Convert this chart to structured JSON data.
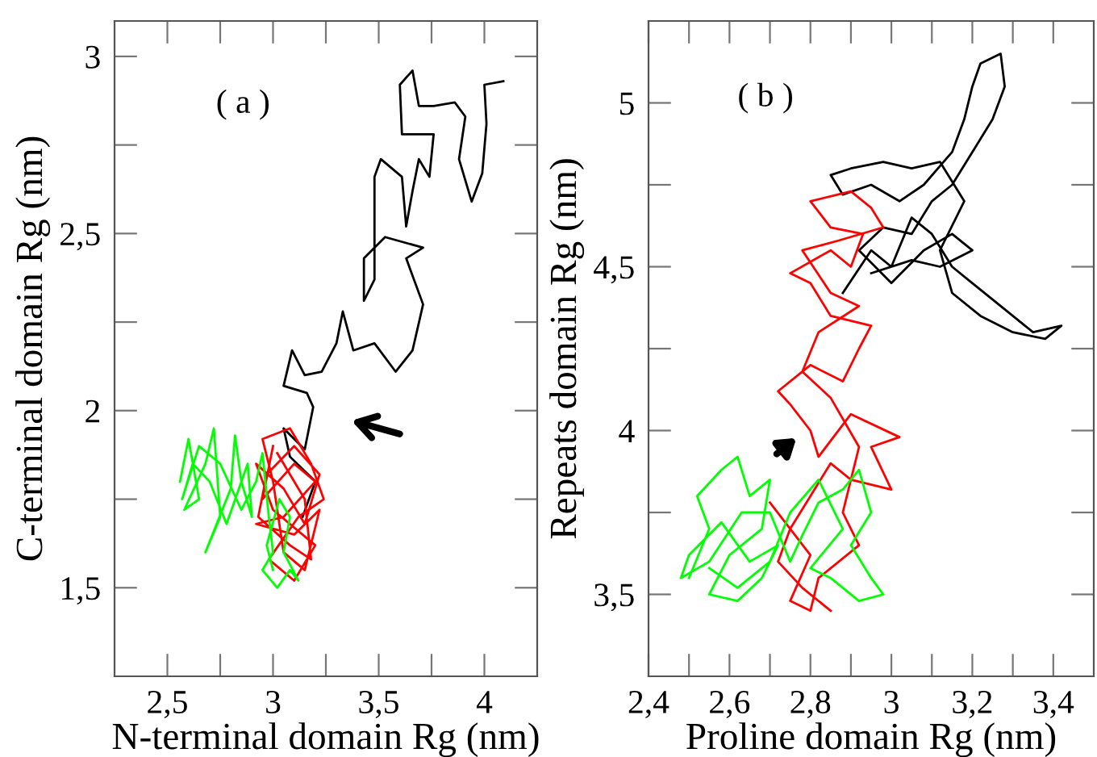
{
  "chart_data": [
    {
      "type": "line",
      "xlabel": "N-terminal domain Rg (nm)",
      "ylabel": "C-terminal domain Rg (nm)",
      "annotations": [
        "( a )"
      ],
      "xlim": [
        2.25,
        4.25
      ],
      "ylim": [
        1.25,
        3.1
      ],
      "xticks": [
        {
          "value": 2.5,
          "label": "2,5"
        },
        {
          "value": 2.75,
          "label": null
        },
        3,
        {
          "value": 3.25,
          "label": null
        },
        {
          "value": 3.5,
          "label": "3,5"
        },
        {
          "value": 3.75,
          "label": null
        },
        4
      ],
      "yticks": [
        {
          "value": 1.5,
          "label": "1,5"
        },
        {
          "value": 1.75,
          "label": null
        },
        2,
        {
          "value": 2.25,
          "label": null
        },
        {
          "value": 2.5,
          "label": "2,5"
        },
        {
          "value": 2.75,
          "label": null
        },
        3
      ],
      "grid": false,
      "legend": false,
      "marker": "none",
      "line_style": "solid",
      "series": [
        {
          "color": "#000000",
          "x": [
            3.14,
            3.2,
            3.08,
            3.05,
            3.15,
            3.19,
            3.16,
            3.05,
            3.09,
            3.15,
            3.23,
            3.3,
            3.33,
            3.38,
            3.48,
            3.58,
            3.66,
            3.71,
            3.63,
            3.71,
            3.53,
            3.43,
            3.43,
            3.48,
            3.48,
            3.48,
            3.51,
            3.61,
            3.63,
            3.66,
            3.69,
            3.74,
            3.76,
            3.61,
            3.6,
            3.66,
            3.69,
            3.76,
            3.86,
            3.91,
            3.88,
            3.94,
            3.99,
            4.01,
            4.0,
            4.09
          ],
          "values": [
            1.7,
            1.8,
            1.87,
            1.95,
            1.89,
            2.01,
            2.05,
            2.07,
            2.17,
            2.1,
            2.11,
            2.19,
            2.28,
            2.17,
            2.19,
            2.11,
            2.17,
            2.3,
            2.43,
            2.46,
            2.49,
            2.43,
            2.31,
            2.37,
            2.52,
            2.66,
            2.71,
            2.66,
            2.52,
            2.62,
            2.71,
            2.66,
            2.78,
            2.78,
            2.92,
            2.96,
            2.86,
            2.86,
            2.87,
            2.83,
            2.71,
            2.59,
            2.67,
            2.81,
            2.92,
            2.93
          ]
        },
        {
          "color": "#ff0000",
          "x": [
            3.0,
            2.95,
            3.1,
            3.2,
            3.05,
            2.92,
            3.1,
            3.22,
            3.15,
            3.05,
            3.0,
            2.95,
            3.08,
            3.18,
            3.24,
            3.12,
            2.98,
            3.1,
            3.2,
            3.0,
            2.92,
            3.05,
            3.15,
            3.22,
            3.1,
            2.97,
            2.93,
            3.08,
            3.18,
            3.15,
            3.02
          ],
          "values": [
            1.9,
            1.75,
            1.85,
            1.8,
            1.7,
            1.68,
            1.65,
            1.72,
            1.55,
            1.6,
            1.8,
            1.92,
            1.95,
            1.85,
            1.75,
            1.7,
            1.58,
            1.52,
            1.62,
            1.72,
            1.85,
            1.78,
            1.68,
            1.82,
            1.9,
            1.82,
            1.7,
            1.62,
            1.58,
            1.75,
            1.88
          ]
        },
        {
          "color": "#00ff00",
          "x": [
            2.56,
            2.6,
            2.65,
            2.58,
            2.68,
            2.72,
            2.75,
            2.68,
            2.8,
            2.82,
            2.85,
            2.9,
            2.88,
            2.78,
            2.7,
            2.62,
            2.57,
            2.65,
            2.75,
            2.85,
            2.92,
            2.95,
            2.98,
            3.0,
            2.95,
            3.02,
            3.08,
            3.12,
            3.05,
            3.08,
            3.03,
            2.97,
            3.0
          ],
          "values": [
            1.8,
            1.92,
            1.75,
            1.72,
            1.85,
            1.95,
            1.7,
            1.6,
            1.78,
            1.93,
            1.8,
            1.7,
            1.85,
            1.68,
            1.8,
            1.85,
            1.75,
            1.9,
            1.85,
            1.72,
            1.8,
            1.88,
            1.7,
            1.6,
            1.55,
            1.5,
            1.55,
            1.52,
            1.6,
            1.7,
            1.75,
            1.62,
            1.55
          ]
        }
      ]
    },
    {
      "type": "line",
      "xlabel": "Proline domain Rg (nm)",
      "ylabel": "Repeats domain Rg (nm)",
      "annotations": [
        "( b )"
      ],
      "xlim": [
        2.4,
        3.5
      ],
      "ylim": [
        3.25,
        5.25
      ],
      "xticks": [
        {
          "value": 2.4,
          "label": "2,4"
        },
        {
          "value": 2.5,
          "label": null
        },
        {
          "value": 2.6,
          "label": "2,6"
        },
        {
          "value": 2.7,
          "label": null
        },
        {
          "value": 2.8,
          "label": "2,8"
        },
        {
          "value": 2.9,
          "label": null
        },
        3,
        {
          "value": 3.1,
          "label": null
        },
        {
          "value": 3.2,
          "label": "3,2"
        },
        {
          "value": 3.3,
          "label": null
        },
        {
          "value": 3.4,
          "label": "3,4"
        }
      ],
      "yticks": [
        {
          "value": 3.5,
          "label": "3,5"
        },
        {
          "value": 3.75,
          "label": null
        },
        4,
        {
          "value": 4.25,
          "label": null
        },
        {
          "value": 4.5,
          "label": "4,5"
        },
        {
          "value": 4.75,
          "label": null
        },
        5
      ],
      "grid": false,
      "legend": false,
      "marker": "none",
      "line_style": "solid",
      "series": [
        {
          "color": "#000000",
          "x": [
            2.88,
            2.95,
            3.0,
            3.05,
            3.1,
            3.15,
            3.2,
            3.25,
            3.3,
            3.35,
            3.42,
            3.38,
            3.3,
            3.22,
            3.15,
            3.12,
            3.18,
            3.12,
            3.05,
            2.98,
            2.9,
            2.85,
            2.88,
            2.95,
            3.02,
            3.08,
            3.15,
            3.18,
            3.2,
            3.22,
            3.27,
            3.28,
            3.25,
            3.2,
            3.15,
            3.1,
            3.05,
            2.98,
            2.92,
            3.0,
            3.08,
            3.15,
            3.2,
            3.12,
            3.05,
            2.95
          ],
          "values": [
            4.42,
            4.55,
            4.5,
            4.65,
            4.6,
            4.5,
            4.45,
            4.4,
            4.35,
            4.3,
            4.32,
            4.28,
            4.3,
            4.35,
            4.42,
            4.55,
            4.7,
            4.82,
            4.8,
            4.82,
            4.8,
            4.78,
            4.72,
            4.75,
            4.7,
            4.75,
            4.85,
            4.95,
            5.05,
            5.12,
            5.15,
            5.05,
            4.95,
            4.85,
            4.75,
            4.7,
            4.6,
            4.62,
            4.55,
            4.45,
            4.55,
            4.6,
            4.55,
            4.5,
            4.52,
            4.48
          ]
        },
        {
          "color": "#ff0000",
          "x": [
            2.85,
            2.78,
            2.72,
            2.75,
            2.8,
            2.85,
            2.9,
            3.0,
            2.95,
            3.02,
            2.9,
            2.82,
            2.8,
            2.75,
            2.72,
            2.8,
            2.88,
            2.92,
            2.95,
            2.85,
            2.8,
            2.75,
            2.85,
            2.9,
            2.93,
            2.85,
            2.8,
            2.9,
            2.95,
            2.98,
            2.87,
            2.78,
            2.85,
            2.92,
            2.82,
            2.78,
            2.85,
            2.92,
            2.88,
            2.92,
            2.82,
            2.8,
            2.75,
            2.8,
            2.7
          ],
          "values": [
            3.45,
            3.52,
            3.6,
            3.7,
            3.8,
            3.9,
            3.85,
            3.82,
            3.95,
            3.98,
            4.05,
            3.92,
            4.0,
            4.08,
            4.12,
            4.2,
            4.15,
            4.25,
            4.32,
            4.35,
            4.45,
            4.48,
            4.55,
            4.5,
            4.6,
            4.62,
            4.7,
            4.73,
            4.68,
            4.62,
            4.58,
            4.55,
            4.42,
            4.38,
            4.3,
            4.18,
            4.1,
            3.95,
            3.75,
            3.65,
            3.55,
            3.45,
            3.48,
            3.62,
            3.78
          ]
        },
        {
          "color": "#00ff00",
          "x": [
            2.5,
            2.55,
            2.52,
            2.58,
            2.62,
            2.65,
            2.7,
            2.68,
            2.6,
            2.55,
            2.62,
            2.68,
            2.72,
            2.65,
            2.58,
            2.5,
            2.48,
            2.55,
            2.63,
            2.7,
            2.75,
            2.78,
            2.82,
            2.88,
            2.92,
            2.95,
            2.9,
            2.95,
            2.98,
            2.92,
            2.85,
            2.8,
            2.88,
            2.82,
            2.75,
            2.7,
            2.62,
            2.55
          ],
          "values": [
            3.55,
            3.7,
            3.8,
            3.88,
            3.92,
            3.8,
            3.85,
            3.7,
            3.62,
            3.5,
            3.48,
            3.55,
            3.65,
            3.6,
            3.72,
            3.62,
            3.55,
            3.6,
            3.75,
            3.75,
            3.6,
            3.68,
            3.78,
            3.82,
            3.88,
            3.75,
            3.65,
            3.55,
            3.5,
            3.48,
            3.55,
            3.58,
            3.7,
            3.85,
            3.75,
            3.6,
            3.52,
            3.58
          ]
        }
      ]
    }
  ]
}
